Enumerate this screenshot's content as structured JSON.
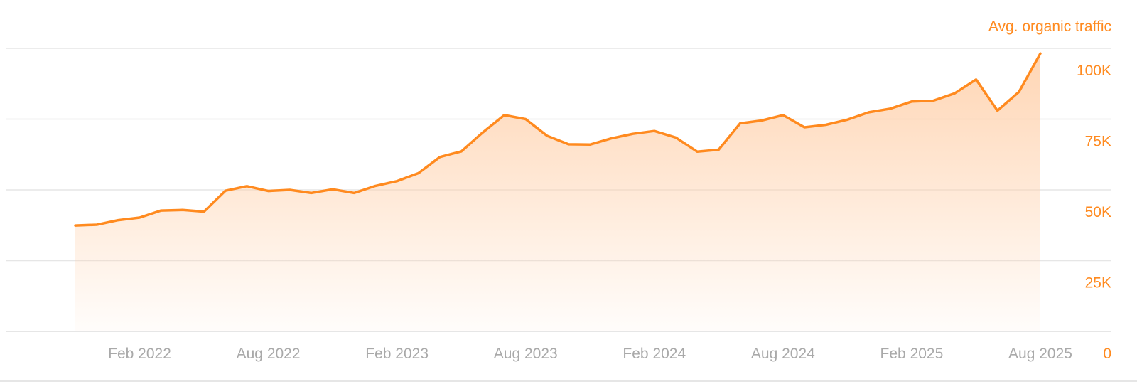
{
  "chart_data": {
    "type": "area",
    "series_title": "Avg. organic traffic",
    "x_ticks": [
      "Feb 2022",
      "Aug 2022",
      "Feb 2023",
      "Aug 2023",
      "Feb 2024",
      "Aug 2024",
      "Feb 2025",
      "Aug 2025"
    ],
    "y_ticks": [
      "0",
      "25K",
      "50K",
      "75K",
      "100K"
    ],
    "ylim": [
      0,
      100000
    ],
    "xlim": [
      "2021-11",
      "2025-08"
    ],
    "grid": true,
    "colors": {
      "line": "#FF8A1F",
      "axis_labels": "#FF8A1F",
      "x_tick_labels": "#A9A9A9",
      "gridlines": "#E6E6E6"
    },
    "series": [
      {
        "x": [
          "2021-11",
          "2021-12",
          "2022-01",
          "2022-02",
          "2022-03",
          "2022-04",
          "2022-05",
          "2022-06",
          "2022-07",
          "2022-08",
          "2022-09",
          "2022-10",
          "2022-11",
          "2022-12",
          "2023-01",
          "2023-02",
          "2023-03",
          "2023-04",
          "2023-05",
          "2023-06",
          "2023-07",
          "2023-08",
          "2023-09",
          "2023-10",
          "2023-11",
          "2023-12",
          "2024-01",
          "2024-02",
          "2024-03",
          "2024-04",
          "2024-05",
          "2024-06",
          "2024-07",
          "2024-08",
          "2024-09",
          "2024-10",
          "2024-11",
          "2024-12",
          "2025-01",
          "2025-02",
          "2025-03",
          "2025-04",
          "2025-05",
          "2025-06",
          "2025-07",
          "2025-08"
        ],
        "y": [
          37400,
          37700,
          39300,
          40200,
          42700,
          42900,
          42300,
          49700,
          51300,
          49600,
          50000,
          48900,
          50200,
          48900,
          51400,
          53100,
          55900,
          61600,
          63600,
          70300,
          76400,
          75000,
          69100,
          66100,
          66000,
          68200,
          69800,
          70800,
          68500,
          63500,
          64200,
          73500,
          74500,
          76400,
          72100,
          73000,
          74800,
          77400,
          78700,
          81200,
          81500,
          84100,
          89000,
          78000,
          84600,
          98200
        ]
      }
    ]
  }
}
